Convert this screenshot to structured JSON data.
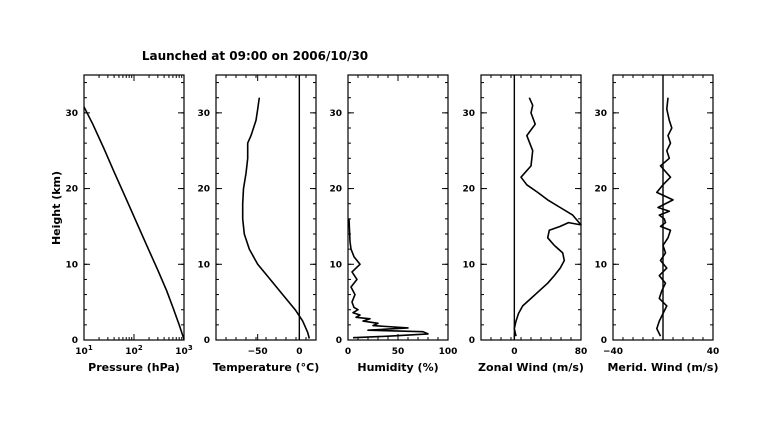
{
  "title": "Launched at 09:00 on 2006/10/30",
  "ylabel": "Height (km)",
  "colors": {
    "line": "#000000",
    "tick_highlight": "#0b1a8a"
  },
  "chart_data": [
    {
      "id": "pressure",
      "type": "line",
      "xlabel": "Pressure (hPa)",
      "xscale": "log",
      "xlim": [
        10,
        1000
      ],
      "ylim": [
        0,
        35
      ],
      "xticks": [
        {
          "value": 10,
          "base": "10",
          "exp": "1"
        },
        {
          "value": 100,
          "base": "10",
          "exp": "2"
        },
        {
          "value": 1000,
          "base": "10",
          "exp": "3"
        }
      ],
      "yticks": [
        0,
        10,
        20,
        30
      ],
      "series": [
        {
          "x": [
            1000,
            800,
            600,
            450,
            300,
            200,
            120,
            70,
            40,
            25,
            15,
            10
          ],
          "y": [
            0.1,
            2,
            4.3,
            6.5,
            9.2,
            11.8,
            15.1,
            18.6,
            22.2,
            25.3,
            28.5,
            30.8
          ]
        }
      ]
    },
    {
      "id": "temperature",
      "type": "line",
      "xlabel": "Temperature (°C)",
      "xlim": [
        -100,
        20
      ],
      "ylim": [
        0,
        35
      ],
      "xticks": [
        {
          "value": -50,
          "label": "−50"
        },
        {
          "value": 0,
          "label": "0"
        }
      ],
      "yticks": [
        0,
        10,
        20,
        30
      ],
      "reference_x": 0,
      "series": [
        {
          "x": [
            12,
            10,
            4,
            -5,
            -20,
            -35,
            -50,
            -60,
            -66,
            -68,
            -68,
            -67,
            -64,
            -62,
            -62,
            -58,
            -55,
            -52,
            -50,
            -48
          ],
          "y": [
            0.2,
            1,
            2.5,
            4,
            6,
            8,
            10,
            12,
            14,
            16,
            18,
            20,
            22,
            24,
            26,
            27,
            28,
            29,
            30.5,
            32
          ]
        }
      ]
    },
    {
      "id": "humidity",
      "type": "line",
      "xlabel": "Humidity (%)",
      "xlim": [
        0,
        100
      ],
      "ylim": [
        0,
        35
      ],
      "xticks": [
        {
          "value": 0,
          "label": "0"
        },
        {
          "value": 50,
          "label": "50"
        },
        {
          "value": 100,
          "label": "100"
        }
      ],
      "yticks": [
        0,
        10,
        20,
        30
      ],
      "series": [
        {
          "x": [
            5,
            40,
            80,
            75,
            20,
            60,
            25,
            30,
            15,
            22,
            8,
            12,
            5,
            10,
            6,
            4,
            7,
            3,
            9,
            4,
            12,
            6,
            3,
            2,
            1
          ],
          "y": [
            0.3,
            0.5,
            0.8,
            1.1,
            1.3,
            1.6,
            1.9,
            2.2,
            2.5,
            2.8,
            3,
            3.3,
            3.6,
            4,
            4.3,
            5,
            6,
            7,
            8,
            9,
            10,
            11,
            12,
            13,
            16
          ]
        }
      ]
    },
    {
      "id": "zonal-wind",
      "type": "line",
      "xlabel": "Zonal Wind (m/s)",
      "xlim": [
        -40,
        80
      ],
      "ylim": [
        0,
        35
      ],
      "xticks": [
        {
          "value": 0,
          "label": "0"
        },
        {
          "value": 80,
          "label": "80"
        }
      ],
      "yticks": [
        0,
        10,
        20,
        30
      ],
      "reference_x": 0,
      "series": [
        {
          "x": [
            2,
            0,
            2,
            5,
            10,
            20,
            30,
            40,
            48,
            55,
            60,
            58,
            48,
            40,
            42,
            55,
            65,
            82,
            70,
            55,
            40,
            28,
            15,
            8,
            20,
            22,
            15,
            25,
            20,
            22,
            18
          ],
          "y": [
            0.5,
            1.5,
            2.5,
            3.5,
            4.5,
            5.5,
            6.5,
            7.5,
            8.5,
            9.5,
            10.5,
            11.5,
            12.5,
            13.5,
            14.5,
            15,
            15.5,
            15.2,
            16.5,
            17.5,
            18.5,
            19.5,
            20.5,
            21.5,
            23,
            25,
            27,
            28.5,
            30,
            31,
            32
          ]
        }
      ]
    },
    {
      "id": "meridional-wind",
      "type": "line",
      "xlabel": "Merid. Wind (m/s)",
      "xlim": [
        -40,
        40
      ],
      "ylim": [
        0,
        35
      ],
      "xticks": [
        {
          "value": -40,
          "label": "−40"
        },
        {
          "value": 40,
          "label": "40"
        }
      ],
      "yticks": [
        0,
        10,
        20,
        30
      ],
      "reference_x": 0,
      "series": [
        {
          "x": [
            -2,
            -5,
            -3,
            0,
            3,
            -3,
            -1,
            2,
            -3,
            3,
            -2,
            2,
            0,
            4,
            6,
            -2,
            2,
            1,
            -3,
            5,
            -4,
            8,
            -5,
            0,
            6,
            -2,
            5,
            3,
            6,
            4,
            7,
            5,
            3,
            4
          ],
          "y": [
            0.5,
            1.5,
            2.5,
            3.5,
            4.5,
            5.5,
            6.5,
            7.5,
            8.5,
            9.5,
            10.5,
            11.5,
            12.5,
            13.5,
            14.5,
            15,
            15.5,
            16,
            16.5,
            17,
            17.5,
            18.5,
            19.5,
            20.5,
            21.5,
            23,
            24,
            25,
            26,
            27,
            28,
            29,
            30.5,
            32
          ]
        }
      ]
    }
  ]
}
